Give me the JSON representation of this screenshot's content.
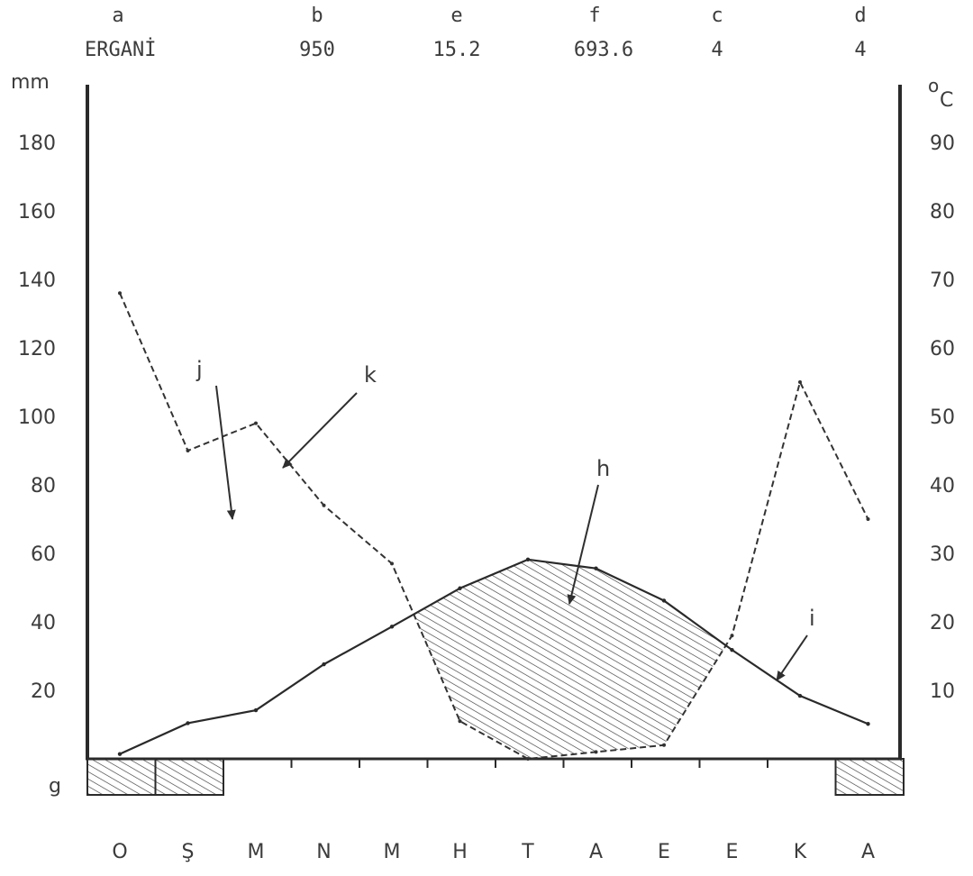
{
  "header": {
    "letters": [
      "a",
      "b",
      "e",
      "f",
      "c",
      "d"
    ],
    "values": [
      "ERGANİ",
      "950",
      "15.2",
      "693.6",
      "4",
      "4"
    ]
  },
  "chart_data": {
    "type": "line",
    "title": "",
    "left_unit": "mm",
    "right_unit": "°C",
    "right_unit_parts": [
      "o",
      "C"
    ],
    "left_ticks": [
      20,
      40,
      60,
      80,
      100,
      120,
      140,
      160,
      180
    ],
    "right_ticks": [
      10,
      20,
      30,
      40,
      50,
      60,
      70,
      80,
      90
    ],
    "ylim_left": [
      0,
      190
    ],
    "ylim_right": [
      0,
      95
    ],
    "categories": [
      "O",
      "Ş",
      "M",
      "N",
      "M",
      "H",
      "T",
      "A",
      "E",
      "E",
      "K",
      "A"
    ],
    "series": [
      {
        "key": "precipitation",
        "style": "dashed",
        "axis": "left",
        "values": [
          136,
          90,
          98,
          74,
          57,
          11,
          0,
          2,
          4,
          36,
          110,
          70
        ]
      },
      {
        "key": "temperature",
        "style": "solid",
        "axis": "right",
        "values": [
          0.7,
          5.2,
          7.1,
          13.8,
          19.3,
          24.9,
          29.1,
          27.8,
          23.1,
          15.9,
          9.2,
          5.1
        ]
      }
    ],
    "dry_period": {
      "label": "h",
      "pattern": "hatched"
    },
    "frost_row_label": "g",
    "frost_months": [
      0,
      1,
      11
    ],
    "annotations": [
      {
        "label": "j",
        "target": "area under precipitation curve"
      },
      {
        "label": "k",
        "target": "precipitation curve"
      },
      {
        "label": "h",
        "target": "dry period"
      },
      {
        "label": "i",
        "target": "temperature curve"
      }
    ]
  }
}
